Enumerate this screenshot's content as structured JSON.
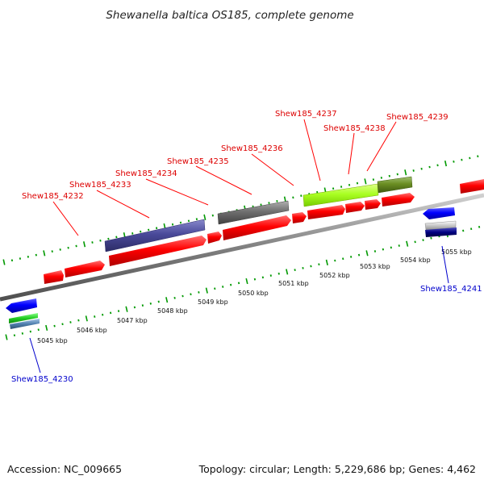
{
  "title": "Shewanella baltica OS185, complete genome",
  "footer": {
    "accession": "Accession: NC_009665",
    "topology": "Topology: circular; Length: 5,229,686 bp; Genes: 4,462"
  },
  "colors": {
    "forward_gene": "#ff0000",
    "reverse_gene": "#0000ff",
    "tick": "#009900",
    "top_label": "#dd0000",
    "bottom_label": "#0000cc",
    "backbone": "#808080"
  },
  "scale_labels": [
    "5045 kbp",
    "5046 kbp",
    "5047 kbp",
    "5048 kbp",
    "5049 kbp",
    "5050 kbp",
    "5051 kbp",
    "5052 kbp",
    "5053 kbp",
    "5054 kbp",
    "5055 kbp"
  ],
  "gene_labels_top": [
    "Shew185_4232",
    "Shew185_4233",
    "Shew185_4234",
    "Shew185_4235",
    "Shew185_4236",
    "Shew185_4237",
    "Shew185_4238",
    "Shew185_4239"
  ],
  "gene_labels_bottom": [
    "Shew185_4230",
    "Shew185_4241"
  ]
}
